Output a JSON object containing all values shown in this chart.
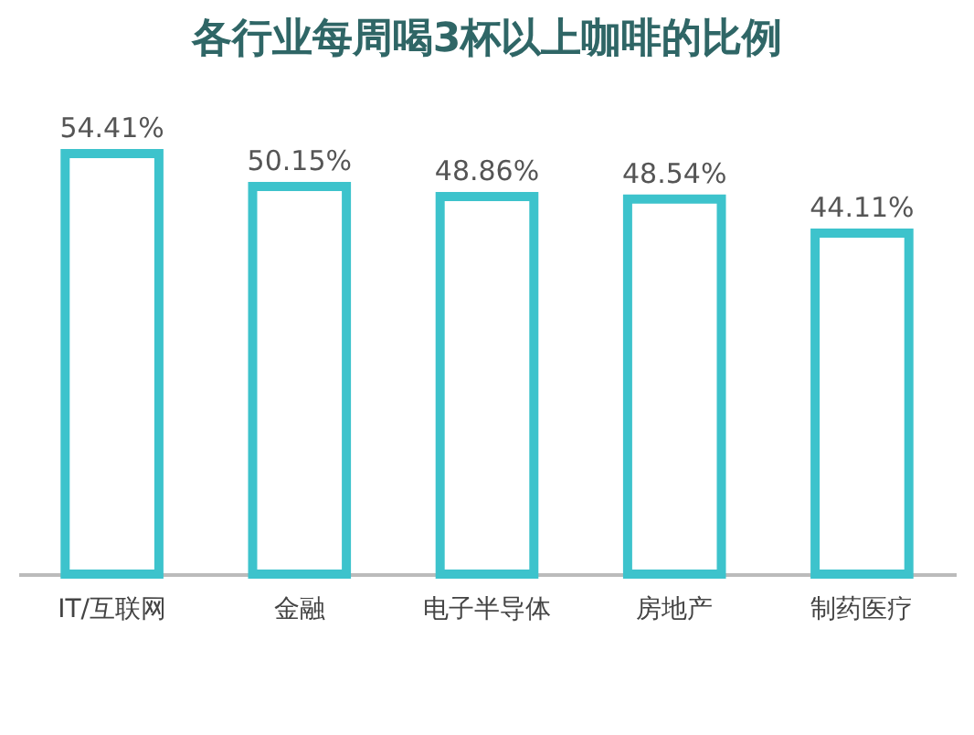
{
  "chart_data": {
    "type": "bar",
    "title": "各行业每周喝3杯以上咖啡的比例",
    "categories": [
      "IT/互联网",
      "金融",
      "电子半导体",
      "房地产",
      "制药医疗"
    ],
    "values": [
      54.41,
      50.15,
      48.86,
      48.54,
      44.11
    ],
    "value_labels": [
      "54.41%",
      "50.15%",
      "48.86%",
      "48.54%",
      "44.11%"
    ],
    "color": "#3dc3cc"
  }
}
